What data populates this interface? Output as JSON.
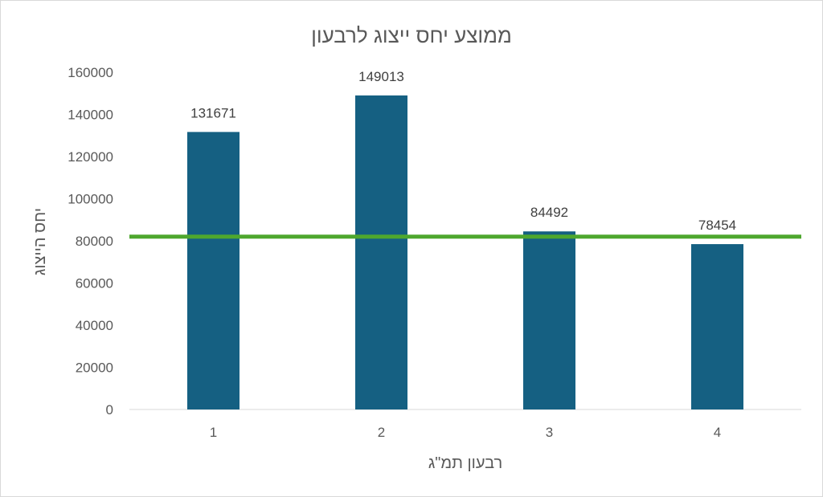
{
  "chart_data": {
    "type": "bar",
    "title": "ממוצע יחס ייצוג לרבעון",
    "xlabel": "רבעון תמ\"ג",
    "ylabel": "יחס הייצוג",
    "categories": [
      "1",
      "2",
      "3",
      "4"
    ],
    "values": [
      131671,
      149013,
      84492,
      78454
    ],
    "data_labels": [
      "131671",
      "149013",
      "84492",
      "78454"
    ],
    "ylim": [
      0,
      160000
    ],
    "yticks": [
      "0",
      "20000",
      "40000",
      "60000",
      "80000",
      "100000",
      "120000",
      "140000",
      "160000"
    ],
    "reference_line": {
      "value": 82000,
      "color": "#4ea72e"
    },
    "bar_color": "#156082",
    "grid": false,
    "legend": "none"
  }
}
